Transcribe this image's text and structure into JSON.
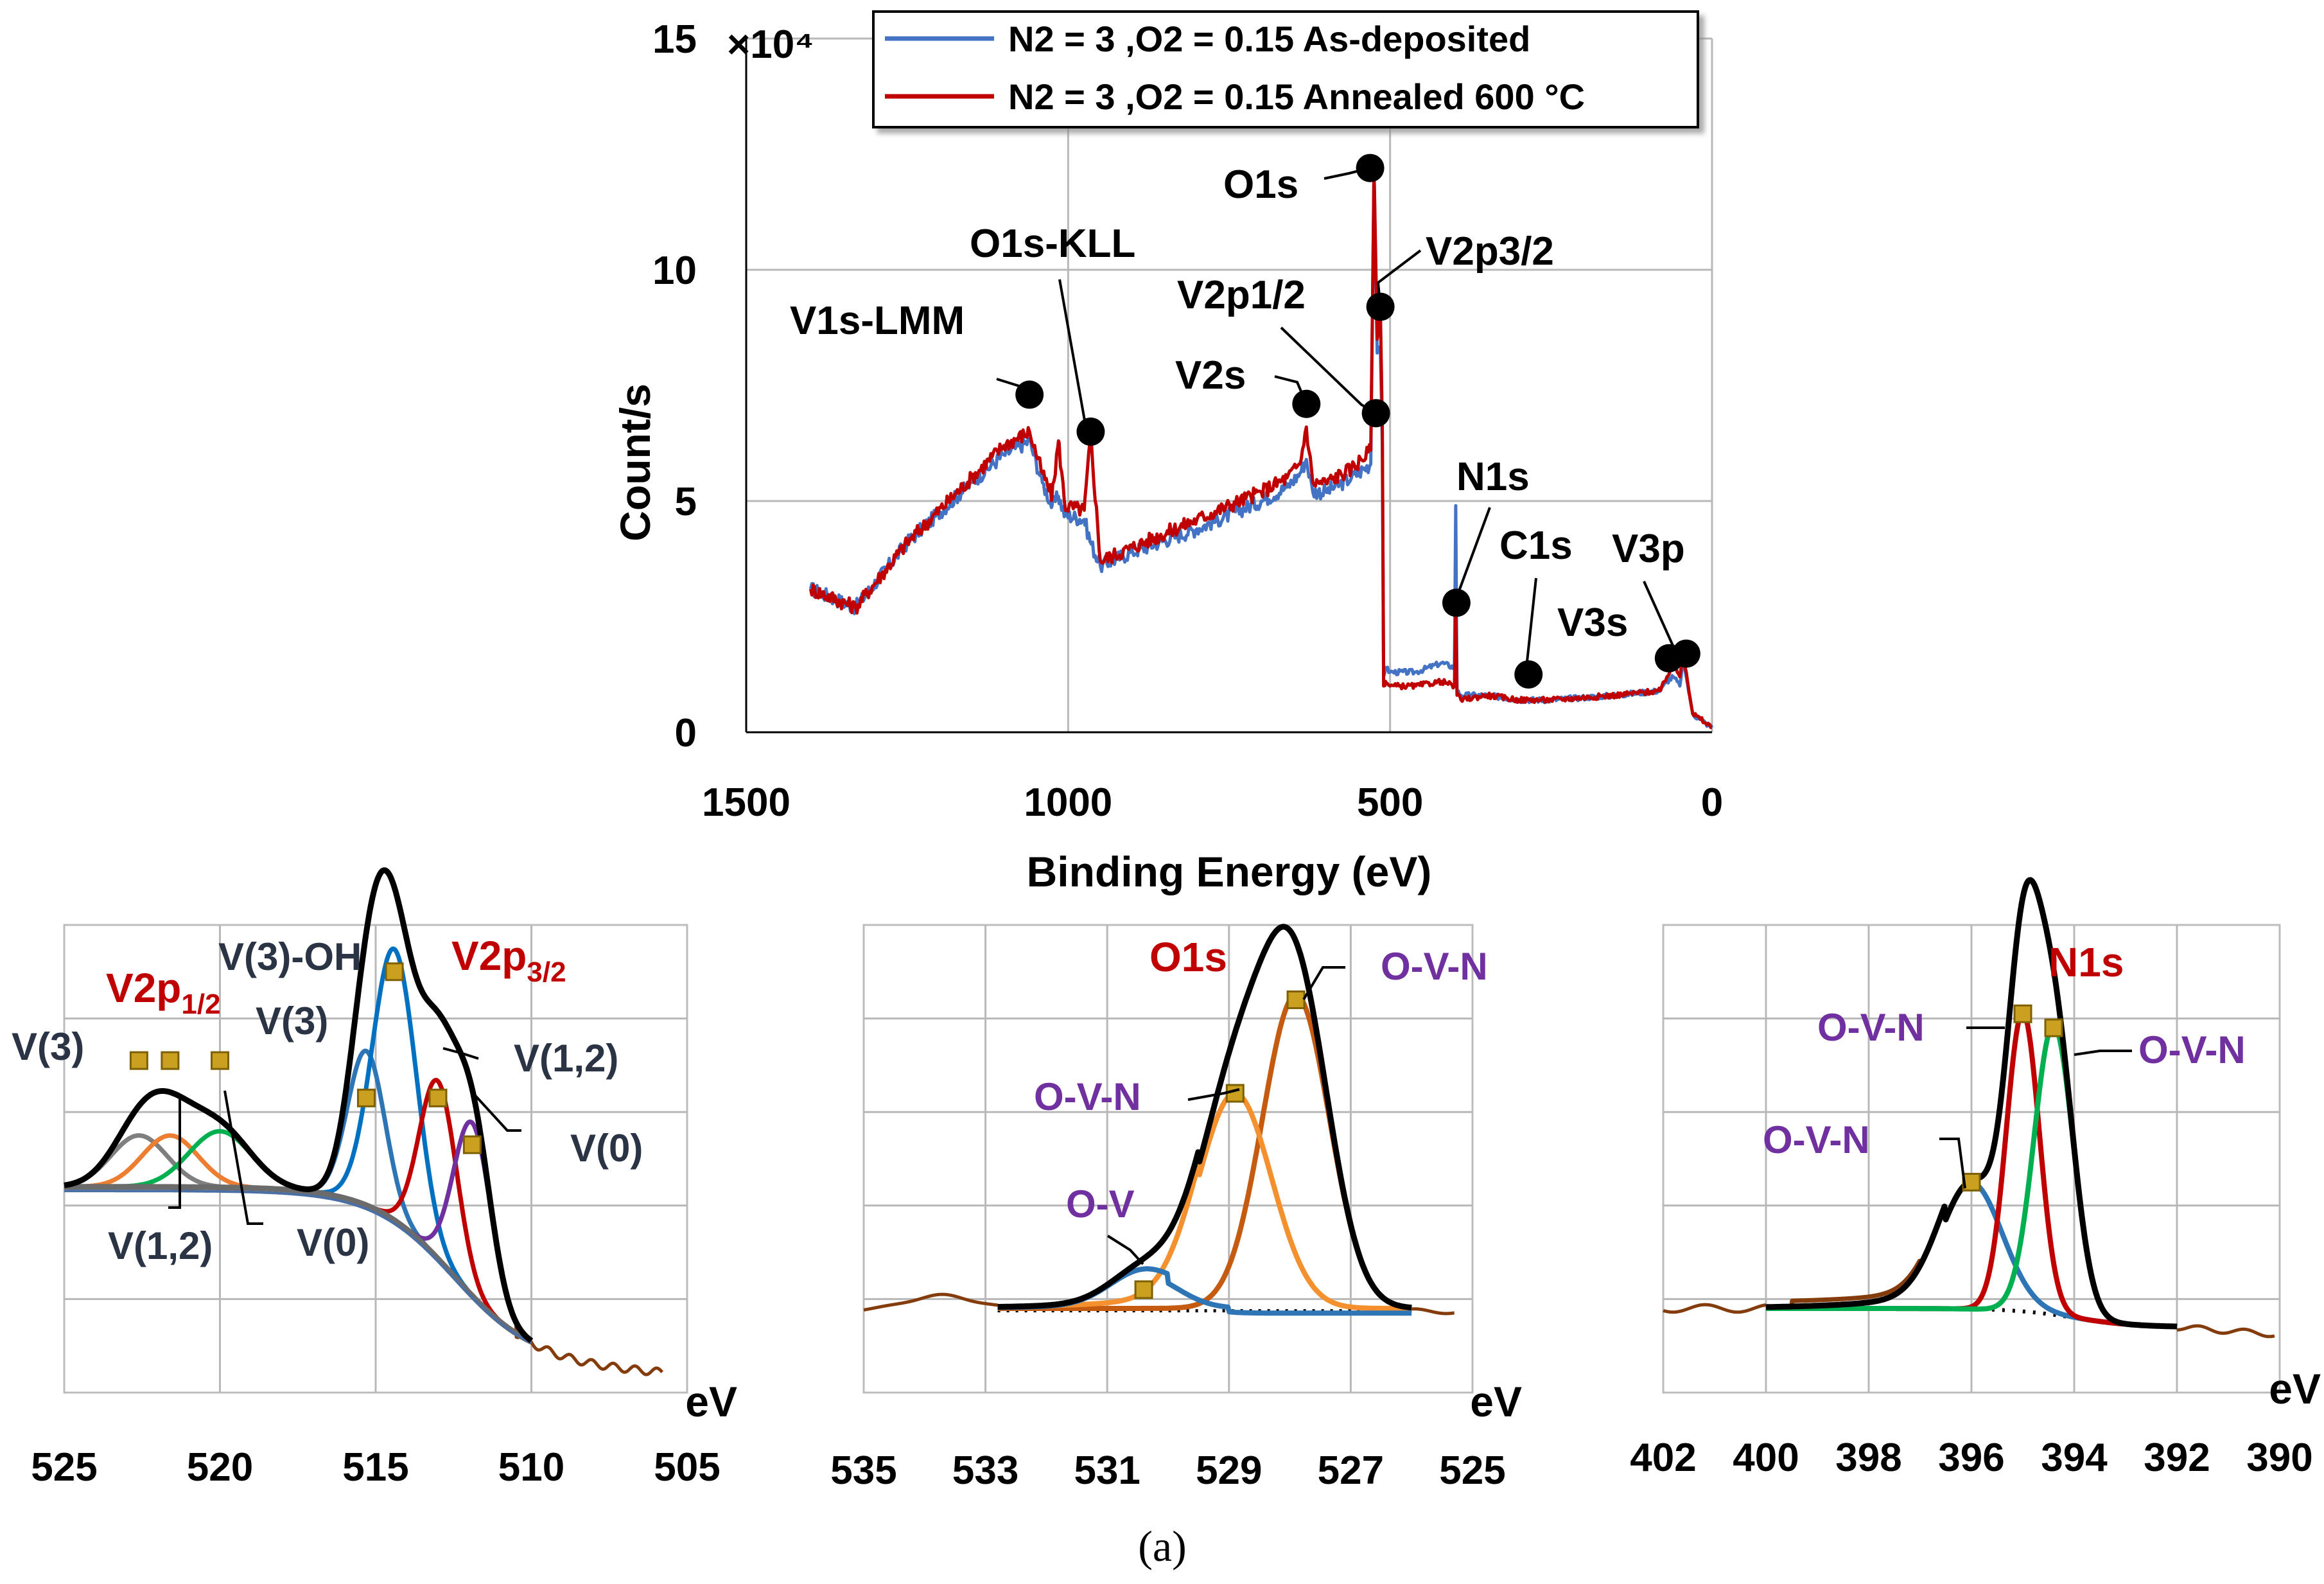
{
  "figure_caption": "(a)",
  "chart_data": [
    {
      "id": "survey",
      "type": "line",
      "xlabel": "Binding Energy (eV)",
      "ylabel": "Count/s",
      "y_multiplier": "×10⁴",
      "xlim": [
        1500,
        0
      ],
      "ylim": [
        0,
        15
      ],
      "x_ticks": [
        "1500",
        "1000",
        "500",
        "0"
      ],
      "y_ticks": [
        "0",
        "5",
        "10",
        "15"
      ],
      "grid": true,
      "legend_position": "top-right",
      "series": [
        {
          "name": "N2 = 3 ,O2 = 0.15 As-deposited",
          "color": "#4472c4",
          "x": [
            1400,
            1330,
            1250,
            1150,
            1100,
            1060,
            1040,
            1025,
            1015,
            1005,
            975,
            965,
            950,
            900,
            800,
            700,
            660,
            640,
            630,
            620,
            600,
            560,
            530,
            525,
            520,
            515,
            512,
            510,
            507,
            500,
            460,
            420,
            400,
            398,
            396,
            390,
            350,
            300,
            250,
            150,
            80,
            70,
            60,
            50,
            45,
            40,
            30,
            10,
            0
          ],
          "y": [
            3.1,
            2.7,
            4.1,
            5.4,
            6.0,
            6.3,
            5.4,
            4.9,
            5.1,
            4.7,
            4.6,
            4.1,
            3.6,
            3.9,
            4.4,
            5.0,
            5.3,
            5.6,
            5.9,
            5.2,
            5.2,
            5.5,
            5.8,
            12.3,
            8.2,
            8.3,
            6.2,
            1.2,
            1.4,
            1.3,
            1.3,
            1.5,
            1.4,
            4.9,
            0.9,
            0.8,
            0.8,
            0.7,
            0.7,
            0.8,
            0.9,
            1.1,
            1.2,
            1.0,
            1.6,
            1.2,
            0.4,
            0.2,
            0.1
          ]
        },
        {
          "name": "N2 = 3 ,O2 = 0.15 Annealed 600 °C",
          "color": "#c00000",
          "x": [
            1400,
            1330,
            1250,
            1150,
            1100,
            1060,
            1040,
            1025,
            1015,
            1005,
            975,
            965,
            950,
            900,
            800,
            700,
            660,
            640,
            630,
            620,
            600,
            560,
            530,
            525,
            520,
            515,
            512,
            510,
            507,
            500,
            460,
            420,
            400,
            398,
            396,
            390,
            350,
            300,
            250,
            150,
            80,
            70,
            60,
            50,
            45,
            40,
            30,
            10,
            0
          ],
          "y": [
            3.1,
            2.7,
            4.1,
            5.5,
            6.2,
            6.5,
            5.6,
            5.1,
            6.3,
            4.9,
            4.8,
            6.4,
            3.7,
            4.0,
            4.6,
            5.2,
            5.5,
            5.8,
            6.6,
            5.4,
            5.4,
            5.7,
            6.1,
            12.1,
            8.5,
            9.1,
            6.6,
            1.0,
            1.1,
            1.0,
            1.0,
            1.1,
            1.0,
            2.7,
            0.8,
            0.7,
            0.8,
            0.7,
            0.7,
            0.8,
            0.9,
            1.2,
            1.5,
            1.2,
            1.7,
            1.3,
            0.4,
            0.2,
            0.1
          ]
        }
      ],
      "annotations": [
        {
          "label": "V1s-LMM",
          "x": 1060,
          "y": 7.3
        },
        {
          "label": "O1s-KLL",
          "x": 965,
          "y": 6.5
        },
        {
          "label": "V2s",
          "x": 630,
          "y": 7.1
        },
        {
          "label": "V2p1/2",
          "x": 522,
          "y": 6.9
        },
        {
          "label": "O1s",
          "x": 531,
          "y": 12.2
        },
        {
          "label": "V2p3/2",
          "x": 515,
          "y": 9.2
        },
        {
          "label": "N1s",
          "x": 397,
          "y": 2.8
        },
        {
          "label": "C1s",
          "x": 285,
          "y": 1.25
        },
        {
          "label": "V3s",
          "x": 67,
          "y": 1.6
        },
        {
          "label": "V3p",
          "x": 40,
          "y": 1.7
        }
      ]
    },
    {
      "id": "v2p",
      "type": "line",
      "xlabel": "eV",
      "xlim": [
        525,
        505
      ],
      "x_ticks": [
        "525",
        "520",
        "515",
        "510",
        "505"
      ],
      "ylim": [
        0,
        100
      ],
      "grid": true,
      "components": [
        {
          "name": "envelope",
          "color": "#000000"
        },
        {
          "name": "V(3) 2p1/2",
          "color": "#7f7f7f",
          "center": 522.6
        },
        {
          "name": "V(1,2) 2p1/2",
          "color": "#ed7d31",
          "center": 521.6
        },
        {
          "name": "V(0) 2p1/2",
          "color": "#00b050",
          "center": 520.0
        },
        {
          "name": "V(3)",
          "color": "#2e75b6",
          "center": 515.3
        },
        {
          "name": "V(3)-OH",
          "color": "#0070c0",
          "center": 514.4
        },
        {
          "name": "V(1,2)",
          "color": "#c00000",
          "center": 513.0
        },
        {
          "name": "V(0)",
          "color": "#7030a0",
          "center": 511.9
        },
        {
          "name": "background",
          "color": "#595959"
        },
        {
          "name": "data",
          "color": "#843c0c"
        }
      ],
      "labels": {
        "v3_left": "V(3)",
        "v2p12_main": "V2p",
        "v2p12_sub": "1/2",
        "v3_mid": "V(3)",
        "v3_oh": "V(3)-OH",
        "v2p32_main": "V2p",
        "v2p32_sub": "3/2",
        "v12_right": "V(1,2)",
        "v0_right": "V(0)",
        "v12_bottom": "V(1,2)",
        "v0_bottom": "V(0)"
      }
    },
    {
      "id": "o1s",
      "type": "line",
      "xlabel": "eV",
      "xlim": [
        535,
        525
      ],
      "x_ticks": [
        "535",
        "533",
        "531",
        "529",
        "527",
        "525"
      ],
      "ylim": [
        0,
        100
      ],
      "grid": true,
      "components": [
        {
          "name": "envelope",
          "color": "#000000"
        },
        {
          "name": "O-V-N",
          "color": "#c55a11",
          "center": 527.9
        },
        {
          "name": "O-V-N",
          "color": "#f4902e",
          "center": 528.9
        },
        {
          "name": "O-V",
          "color": "#2e75b6",
          "center": 530.4
        },
        {
          "name": "data",
          "color": "#843c0c"
        }
      ],
      "labels": {
        "title": "O1s",
        "ovn_top": "O-V-N",
        "ovn_mid": "O-V-N",
        "ov": "O-V"
      }
    },
    {
      "id": "n1s",
      "type": "line",
      "xlabel": "eV",
      "xlim": [
        402,
        390
      ],
      "x_ticks": [
        "402",
        "400",
        "398",
        "396",
        "394",
        "392",
        "390"
      ],
      "ylim": [
        0,
        100
      ],
      "grid": true,
      "components": [
        {
          "name": "envelope",
          "color": "#000000"
        },
        {
          "name": "O-V-N",
          "color": "#c00000",
          "center": 395.0
        },
        {
          "name": "O-V-N",
          "color": "#00b050",
          "center": 394.4
        },
        {
          "name": "O-V-N",
          "color": "#2e75b6",
          "center": 396.0
        },
        {
          "name": "data",
          "color": "#843c0c"
        }
      ],
      "labels": {
        "title": "N1s",
        "ovn_left": "O-V-N",
        "ovn_right": "O-V-N",
        "ovn_low": "O-V-N"
      }
    }
  ]
}
